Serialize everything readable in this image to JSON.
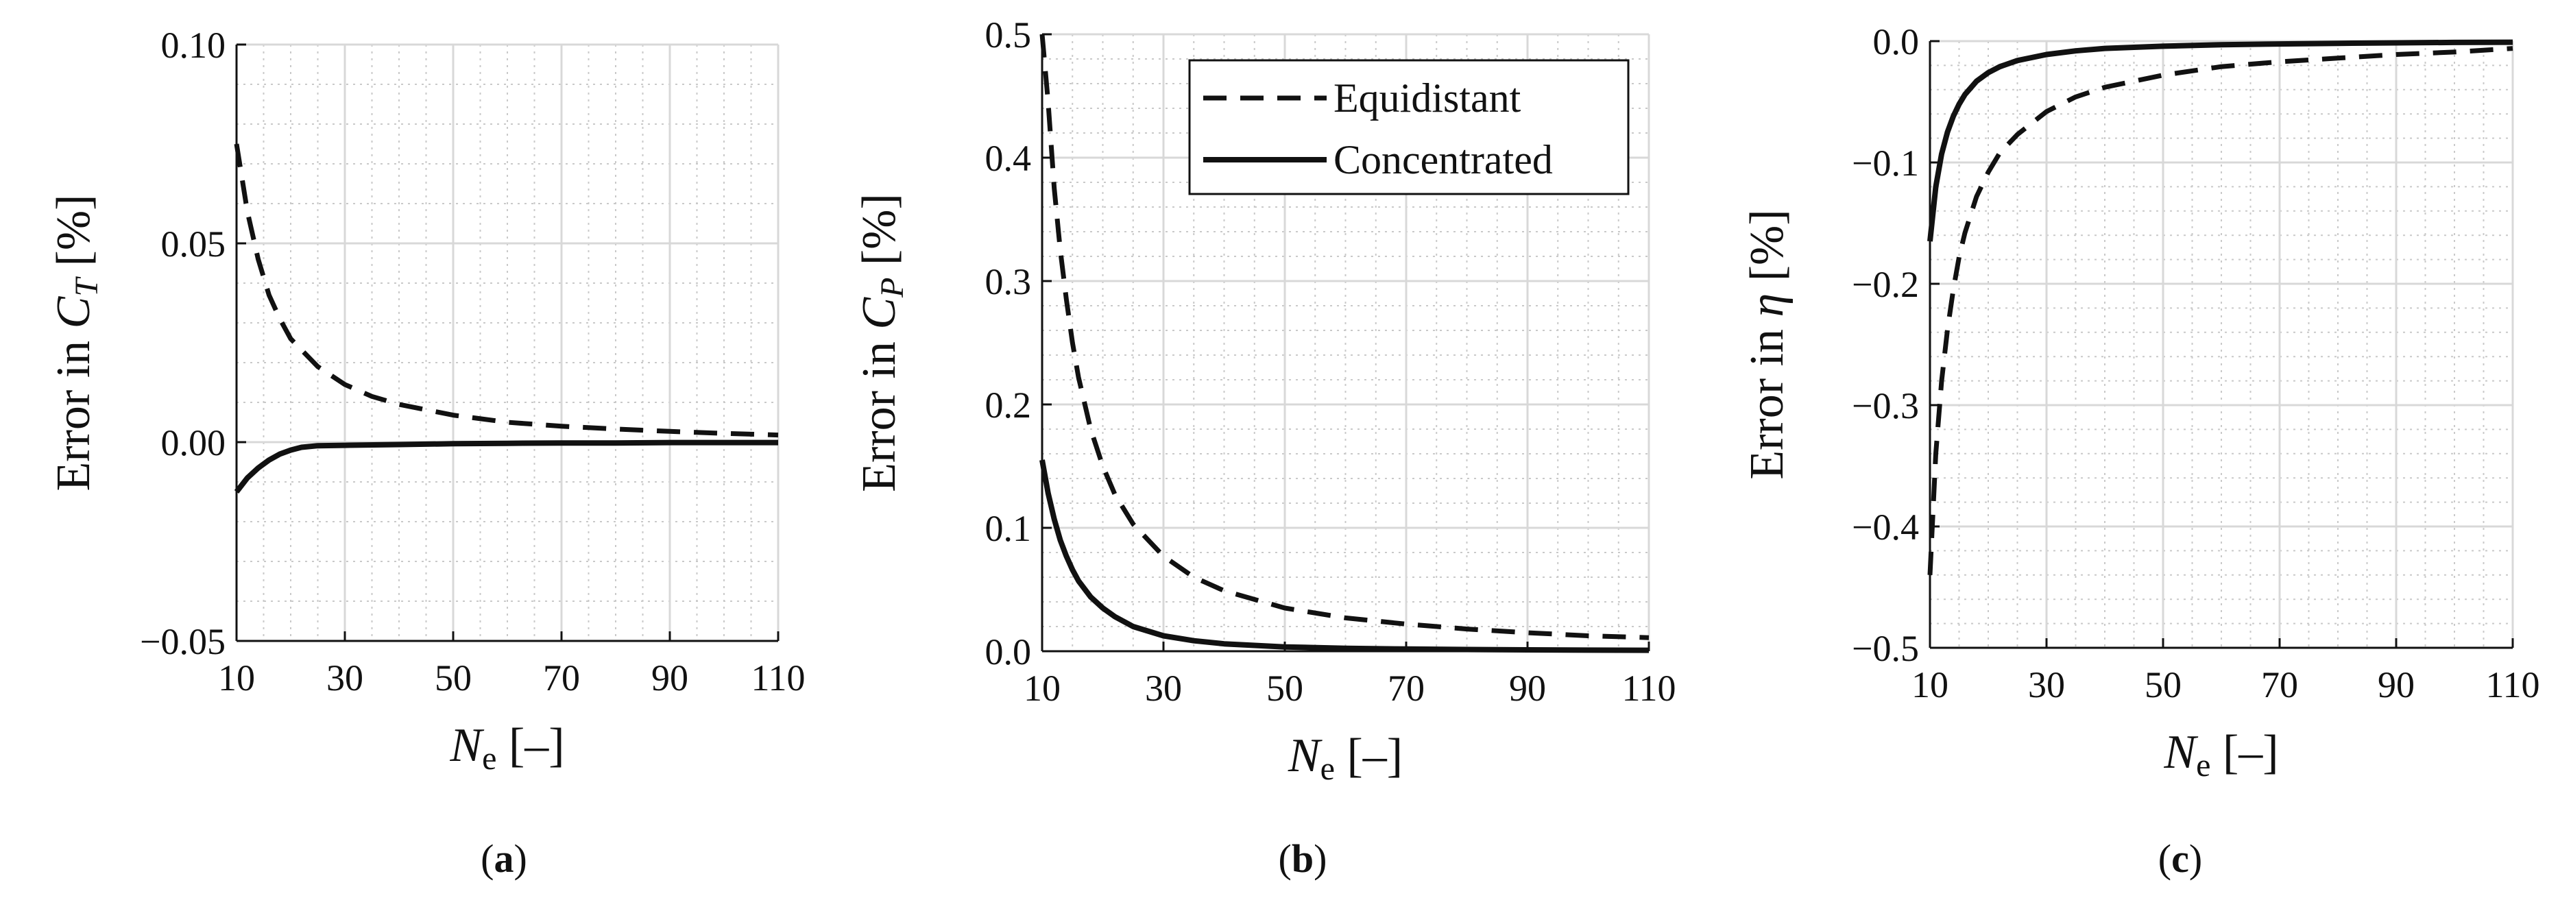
{
  "chart_data": [
    {
      "type": "line",
      "panel_label": "(a)",
      "ylabel": {
        "prefix": "Error in ",
        "symbol": "C",
        "subscript": "T",
        "unit": " [%]"
      },
      "xlabel": {
        "symbol": "N",
        "subscript": "e",
        "unit": " [–]"
      },
      "xlim": [
        10,
        110
      ],
      "ylim": [
        -0.05,
        0.1
      ],
      "xticks": [
        10,
        30,
        50,
        70,
        90,
        110
      ],
      "yticks": [
        -0.05,
        0.0,
        0.05,
        0.1
      ],
      "ytick_labels": [
        "−0.05",
        "0.00",
        "0.05",
        "0.10"
      ],
      "grid": true,
      "minor_grid": true,
      "series": [
        {
          "name": "Equidistant",
          "style": "dashed",
          "x": [
            10,
            12,
            14,
            16,
            18,
            20,
            25,
            30,
            35,
            40,
            50,
            60,
            70,
            80,
            90,
            100,
            110
          ],
          "y": [
            0.075,
            0.058,
            0.046,
            0.037,
            0.031,
            0.026,
            0.019,
            0.0145,
            0.0115,
            0.0095,
            0.0068,
            0.005,
            0.004,
            0.0033,
            0.0027,
            0.0022,
            0.0018
          ]
        },
        {
          "name": "Concentrated",
          "style": "solid",
          "x": [
            10,
            12,
            14,
            16,
            18,
            20,
            22,
            25,
            30,
            40,
            50,
            60,
            70,
            80,
            90,
            100,
            110
          ],
          "y": [
            -0.0125,
            -0.009,
            -0.0065,
            -0.0045,
            -0.003,
            -0.002,
            -0.0013,
            -0.0009,
            -0.0008,
            -0.0006,
            -0.0004,
            -0.0003,
            -0.0002,
            -0.0002,
            -0.0001,
            -0.0001,
            -0.0001
          ]
        }
      ]
    },
    {
      "type": "line",
      "panel_label": "(b)",
      "ylabel": {
        "prefix": "Error in ",
        "symbol": "C",
        "subscript": "P",
        "unit": " [%]"
      },
      "xlabel": {
        "symbol": "N",
        "subscript": "e",
        "unit": " [–]"
      },
      "xlim": [
        10,
        110
      ],
      "ylim": [
        0,
        0.5
      ],
      "xticks": [
        10,
        30,
        50,
        70,
        90,
        110
      ],
      "yticks": [
        0,
        0.1,
        0.2,
        0.3,
        0.4,
        0.5
      ],
      "ytick_labels": [
        "0.0",
        "0.1",
        "0.2",
        "0.3",
        "0.4",
        "0.5"
      ],
      "grid": true,
      "minor_grid": true,
      "legend": {
        "position": "top-right",
        "entries": [
          {
            "label": "Equidistant",
            "style": "dashed"
          },
          {
            "label": "Concentrated",
            "style": "solid"
          }
        ]
      },
      "series": [
        {
          "name": "Equidistant",
          "style": "dashed",
          "x": [
            10,
            11,
            12,
            13,
            14,
            15,
            16,
            18,
            20,
            22,
            25,
            30,
            35,
            40,
            50,
            60,
            70,
            80,
            90,
            100,
            110
          ],
          "y": [
            0.5,
            0.445,
            0.375,
            0.325,
            0.285,
            0.25,
            0.222,
            0.18,
            0.15,
            0.127,
            0.103,
            0.077,
            0.06,
            0.049,
            0.035,
            0.027,
            0.022,
            0.018,
            0.015,
            0.0125,
            0.011
          ]
        },
        {
          "name": "Concentrated",
          "style": "solid",
          "x": [
            10,
            11,
            12,
            13,
            14,
            15,
            16,
            18,
            20,
            22,
            25,
            30,
            35,
            40,
            50,
            60,
            70,
            80,
            90,
            100,
            110
          ],
          "y": [
            0.155,
            0.128,
            0.107,
            0.09,
            0.077,
            0.066,
            0.057,
            0.044,
            0.035,
            0.028,
            0.02,
            0.0125,
            0.0085,
            0.006,
            0.0035,
            0.0024,
            0.0018,
            0.0014,
            0.0011,
            0.0009,
            0.0008
          ]
        }
      ]
    },
    {
      "type": "line",
      "panel_label": "(c)",
      "ylabel": {
        "prefix": "Error in ",
        "symbol": "η",
        "subscript": "",
        "unit": " [%]"
      },
      "xlabel": {
        "symbol": "N",
        "subscript": "e",
        "unit": " [–]"
      },
      "xlim": [
        10,
        110
      ],
      "ylim": [
        -0.5,
        0
      ],
      "xticks": [
        10,
        30,
        50,
        70,
        90,
        110
      ],
      "yticks": [
        -0.5,
        -0.4,
        -0.3,
        -0.2,
        -0.1,
        0
      ],
      "ytick_labels": [
        "−0.5",
        "−0.4",
        "−0.3",
        "−0.2",
        "−0.1",
        "0.0"
      ],
      "grid": true,
      "minor_grid": true,
      "series": [
        {
          "name": "Equidistant",
          "style": "dashed",
          "x": [
            10,
            11,
            12,
            13,
            14,
            15,
            16,
            18,
            20,
            22,
            25,
            30,
            35,
            40,
            50,
            60,
            70,
            80,
            90,
            100,
            110
          ],
          "y": [
            -0.44,
            -0.34,
            -0.28,
            -0.238,
            -0.205,
            -0.178,
            -0.158,
            -0.128,
            -0.108,
            -0.092,
            -0.077,
            -0.058,
            -0.046,
            -0.038,
            -0.028,
            -0.021,
            -0.017,
            -0.014,
            -0.011,
            -0.009,
            -0.006
          ]
        },
        {
          "name": "Concentrated",
          "style": "solid",
          "x": [
            10,
            11,
            12,
            13,
            14,
            15,
            16,
            18,
            20,
            22,
            25,
            30,
            35,
            40,
            50,
            60,
            70,
            80,
            90,
            100,
            110
          ],
          "y": [
            -0.165,
            -0.12,
            -0.093,
            -0.075,
            -0.062,
            -0.052,
            -0.044,
            -0.033,
            -0.026,
            -0.021,
            -0.016,
            -0.011,
            -0.008,
            -0.006,
            -0.0042,
            -0.003,
            -0.0023,
            -0.0018,
            -0.0014,
            -0.0011,
            -0.0009
          ]
        }
      ]
    }
  ]
}
